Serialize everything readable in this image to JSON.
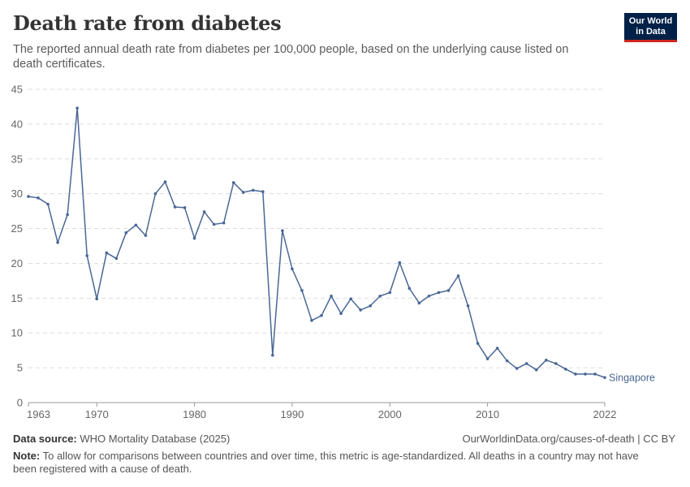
{
  "header": {
    "title": "Death rate from diabetes",
    "subtitle": "The reported annual death rate from diabetes per 100,000 people, based on the underlying cause listed on death certificates."
  },
  "logo": {
    "line1": "Our World",
    "line2": "in Data",
    "bg_color": "#002147",
    "accent_color": "#ce261e"
  },
  "footer": {
    "source_label": "Data source:",
    "source_text": "WHO Mortality Database (2025)",
    "credit": "OurWorldinData.org/causes-of-death | CC BY",
    "note_label": "Note:",
    "note_text": "To allow for comparisons between countries and over time, this metric is age-standardized. All deaths in a country may not have been registered with a cause of death."
  },
  "chart_data": {
    "type": "line",
    "title": "Death rate from diabetes",
    "xlabel": "",
    "ylabel": "",
    "xlim": [
      1963,
      2022
    ],
    "ylim": [
      0,
      45
    ],
    "y_ticks": [
      0,
      5,
      10,
      15,
      20,
      25,
      30,
      35,
      40,
      45
    ],
    "x_ticks": [
      1963,
      1970,
      1980,
      1990,
      2000,
      2010,
      2022
    ],
    "grid": "horizontal dashed",
    "line_color": "#4a6795",
    "series": [
      {
        "name": "Singapore",
        "x": [
          1963,
          1964,
          1965,
          1966,
          1967,
          1968,
          1969,
          1970,
          1971,
          1972,
          1973,
          1974,
          1975,
          1976,
          1977,
          1978,
          1979,
          1980,
          1981,
          1982,
          1983,
          1984,
          1985,
          1986,
          1987,
          1988,
          1989,
          1990,
          1991,
          1992,
          1993,
          1994,
          1995,
          1996,
          1997,
          1998,
          1999,
          2000,
          2001,
          2002,
          2003,
          2004,
          2005,
          2006,
          2007,
          2008,
          2009,
          2010,
          2011,
          2012,
          2013,
          2014,
          2015,
          2016,
          2017,
          2018,
          2019,
          2020,
          2021,
          2022
        ],
        "values": [
          29.6,
          29.4,
          28.5,
          23.0,
          27.0,
          42.3,
          21.1,
          14.9,
          21.5,
          20.7,
          24.4,
          25.5,
          24.0,
          30.0,
          31.7,
          28.1,
          28.0,
          23.6,
          27.4,
          25.6,
          25.8,
          31.6,
          30.2,
          30.5,
          30.3,
          6.8,
          24.7,
          19.2,
          16.1,
          11.8,
          12.5,
          15.3,
          12.8,
          14.9,
          13.3,
          13.9,
          15.3,
          15.8,
          20.1,
          16.4,
          14.3,
          15.3,
          15.8,
          16.1,
          18.2,
          13.9,
          8.5,
          6.3,
          7.8,
          6.0,
          4.9,
          5.6,
          4.7,
          6.1,
          5.6,
          4.8,
          4.1,
          4.1,
          4.1,
          3.6
        ]
      }
    ]
  }
}
